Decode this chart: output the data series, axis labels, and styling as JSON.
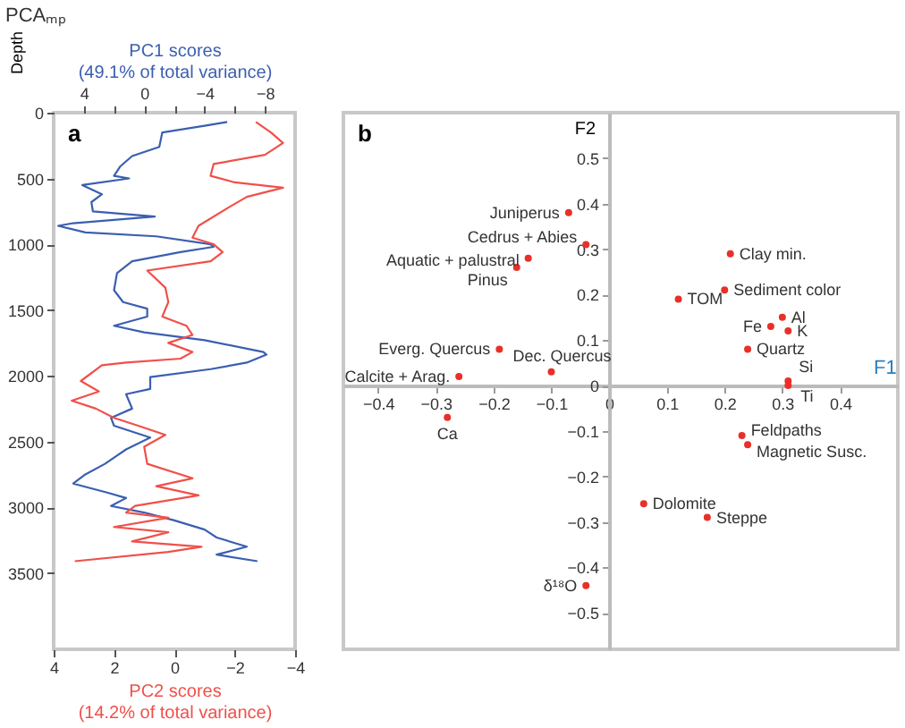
{
  "chart_data": [
    {
      "type": "line",
      "title": "PCAₘₚ",
      "ylabel": "Depth",
      "xlabel": "PC2 scores\n(14.2% of total variance)",
      "x2label": "PC1 scores\n(49.1% of total variance)",
      "annotations": [
        "a"
      ],
      "xlim": [
        4,
        -4
      ],
      "xticks": [
        4,
        2,
        0,
        -2,
        -4
      ],
      "x2lim": [
        6,
        -10
      ],
      "x2ticks": [
        4,
        {
          "value": 2,
          "label": null
        },
        0,
        {
          "value": -2,
          "label": null
        },
        -4,
        {
          "value": -6,
          "label": null
        },
        -8
      ],
      "ylim": [
        4080,
        0
      ],
      "yticks": [
        0,
        500,
        1000,
        1500,
        2000,
        2500,
        3000,
        3500
      ],
      "series": [
        {
          "color": "#3a5fb0",
          "axis": "x2",
          "x": [
            -5.5,
            -4.0,
            -1.2,
            -1.0,
            0.8,
            1.6,
            2.0,
            1.0,
            4.1,
            2.8,
            3.5,
            3.4,
            -0.7,
            4.7,
            5.7,
            3.9,
            -0.8,
            -4.4,
            -4.6,
            -2.4,
            0.8,
            1.8,
            2.0,
            1.4,
            -0.2,
            -0.2,
            2.0,
            0.0,
            -4.0,
            -7.9,
            -8.1,
            -6.8,
            -4.4,
            -0.4,
            -0.4,
            1.2,
            0.8,
            2.2,
            2.0,
            -0.4,
            1.2,
            2.6,
            3.9,
            4.7,
            2.4,
            1.2,
            2.2,
            0.0,
            -2.0,
            -4.0,
            -4.8,
            -6.8,
            -4.8,
            -7.5
          ],
          "values": [
            70,
            100,
            150,
            260,
            330,
            410,
            480,
            500,
            550,
            620,
            680,
            750,
            790,
            840,
            860,
            910,
            940,
            1000,
            1020,
            1060,
            1130,
            1220,
            1350,
            1440,
            1490,
            1550,
            1620,
            1670,
            1730,
            1820,
            1840,
            1900,
            1950,
            2010,
            2100,
            2140,
            2250,
            2320,
            2380,
            2470,
            2560,
            2670,
            2750,
            2820,
            2890,
            2930,
            2990,
            3040,
            3100,
            3170,
            3230,
            3300,
            3360,
            3410
          ]
        },
        {
          "color": "#f0504a",
          "x": [
            -2.7,
            -3.2,
            -3.6,
            -3.0,
            -1.3,
            -1.2,
            -2.0,
            -3.6,
            -2.4,
            -1.8,
            -0.8,
            -0.6,
            -1.3,
            -1.6,
            -1.2,
            0.9,
            0.3,
            0.2,
            0.4,
            -0.4,
            -0.6,
            0.2,
            -0.6,
            -0.2,
            1.6,
            2.4,
            3.1,
            2.5,
            3.4,
            2.6,
            2.0,
            1.2,
            0.3,
            1.0,
            0.9,
            -0.6,
            0.6,
            -0.8,
            1.3,
            1.6,
            0.2,
            2.0,
            0.2,
            1.4,
            -0.9,
            0.2,
            3.3
          ],
          "values": [
            70,
            150,
            230,
            320,
            390,
            480,
            530,
            570,
            640,
            720,
            860,
            950,
            1000,
            1060,
            1130,
            1200,
            1330,
            1440,
            1550,
            1620,
            1690,
            1750,
            1820,
            1870,
            1900,
            1920,
            2040,
            2120,
            2190,
            2250,
            2320,
            2380,
            2450,
            2540,
            2670,
            2780,
            2840,
            2910,
            2990,
            3040,
            3080,
            3150,
            3190,
            3260,
            3300,
            3340,
            3410
          ]
        }
      ]
    },
    {
      "type": "scatter",
      "xlabel": "F1",
      "ylabel": "F2",
      "xlim": [
        -0.46,
        0.5
      ],
      "ylim": [
        -0.58,
        0.6
      ],
      "xticks": [
        -0.4,
        -0.3,
        -0.2,
        -0.1,
        0,
        0.1,
        0.2,
        0.3,
        0.4
      ],
      "yticks": [
        -0.5,
        -0.4,
        -0.3,
        -0.2,
        -0.1,
        0,
        0.1,
        0.2,
        0.3,
        0.4,
        0.5
      ],
      "marker": "circle",
      "series": [
        {
          "color": "#e8302a",
          "x": [
            -0.07,
            -0.04,
            -0.14,
            -0.16,
            0.21,
            0.2,
            0.12,
            0.3,
            0.28,
            0.31,
            0.24,
            0.31,
            0.31,
            -0.19,
            -0.1,
            -0.26,
            -0.28,
            0.23,
            0.24,
            0.06,
            0.17,
            -0.04
          ],
          "values": [
            0.38,
            0.31,
            0.28,
            0.26,
            0.29,
            0.21,
            0.19,
            0.15,
            0.13,
            0.12,
            0.08,
            0.01,
            0.0,
            0.08,
            0.03,
            0.02,
            -0.07,
            -0.11,
            -0.13,
            -0.26,
            -0.29,
            -0.44
          ]
        }
      ],
      "annotations": [
        "b",
        {
          "text": "Juniperus",
          "x": -0.07,
          "y": 0.38
        },
        {
          "text": "Cedrus + Abies",
          "x": -0.04,
          "y": 0.31
        },
        {
          "text": "Aquatic + palustral",
          "x": -0.14,
          "y": 0.28
        },
        {
          "text": "Pinus",
          "x": -0.16,
          "y": 0.26
        },
        {
          "text": "Clay min.",
          "x": 0.21,
          "y": 0.29
        },
        {
          "text": "Sediment color",
          "x": 0.2,
          "y": 0.21
        },
        {
          "text": "TOM",
          "x": 0.12,
          "y": 0.19
        },
        {
          "text": "Al",
          "x": 0.3,
          "y": 0.15
        },
        {
          "text": "Fe",
          "x": 0.28,
          "y": 0.13
        },
        {
          "text": "K",
          "x": 0.31,
          "y": 0.12
        },
        {
          "text": "Quartz",
          "x": 0.24,
          "y": 0.08
        },
        {
          "text": "Si",
          "x": 0.31,
          "y": 0.01
        },
        {
          "text": "Ti",
          "x": 0.31,
          "y": 0.0
        },
        {
          "text": "Everg. Quercus",
          "x": -0.19,
          "y": 0.08
        },
        {
          "text": "Dec. Quercus",
          "x": -0.1,
          "y": 0.03
        },
        {
          "text": "Calcite + Arag.",
          "x": -0.26,
          "y": 0.02
        },
        {
          "text": "Ca",
          "x": -0.28,
          "y": -0.07
        },
        {
          "text": "Feldpaths",
          "x": 0.23,
          "y": -0.11
        },
        {
          "text": "Magnetic Susc.",
          "x": 0.24,
          "y": -0.13
        },
        {
          "text": "Dolomite",
          "x": 0.06,
          "y": -0.26
        },
        {
          "text": "Steppe",
          "x": 0.17,
          "y": -0.29
        },
        {
          "text": "δ¹⁸O",
          "x": -0.04,
          "y": -0.44
        }
      ]
    }
  ]
}
